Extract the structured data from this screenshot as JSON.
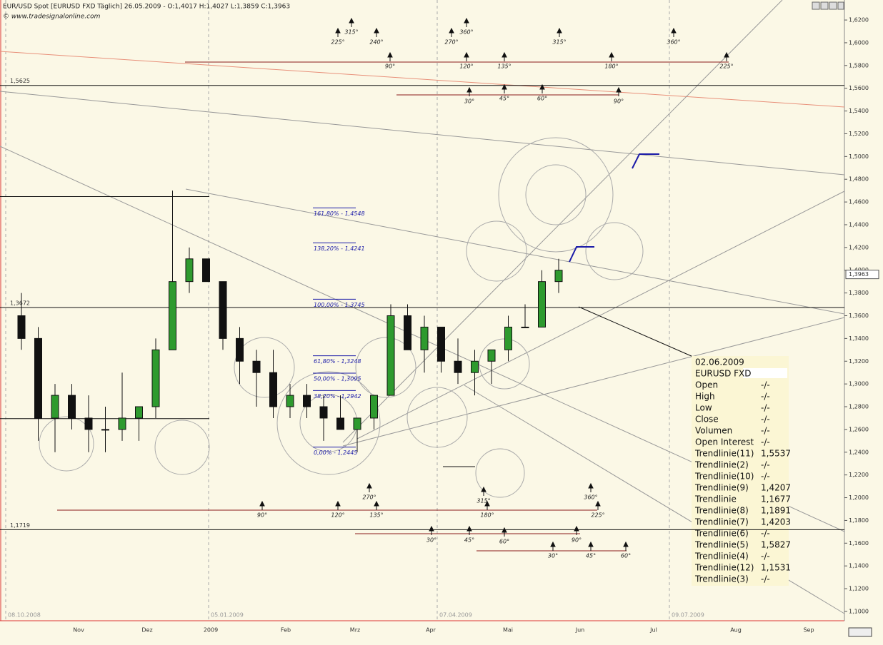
{
  "chart_data": {
    "type": "candlestick",
    "title": "EUR/USD Spot [EURUSD FXD  Täglich] 26.05.2009 - O:1,4017 H:1,4027 L:1,3859 C:1,3963",
    "subtitle": "© www.tradesignalonline.com",
    "categories": [
      null,
      null,
      null,
      null,
      null,
      null,
      null,
      null,
      null,
      null,
      null,
      null,
      null,
      null,
      null,
      null,
      null,
      null,
      null,
      null,
      null,
      null,
      null,
      null,
      null,
      null,
      null,
      null,
      null,
      null,
      null,
      null,
      null
    ],
    "open": [
      1.36,
      1.34,
      1.27,
      1.29,
      1.27,
      1.26,
      1.26,
      1.27,
      1.28,
      1.33,
      1.39,
      1.41,
      1.39,
      1.34,
      1.32,
      1.31,
      1.28,
      1.29,
      1.28,
      1.27,
      1.26,
      1.27,
      1.29,
      1.36,
      1.33,
      1.35,
      1.32,
      1.31,
      1.32,
      1.33,
      1.35,
      1.35,
      1.39
    ],
    "high": [
      1.38,
      1.35,
      1.3,
      1.3,
      1.29,
      1.28,
      1.31,
      1.28,
      1.34,
      1.47,
      1.42,
      1.41,
      1.39,
      1.35,
      1.33,
      1.33,
      1.3,
      1.3,
      1.29,
      1.29,
      1.27,
      1.29,
      1.37,
      1.37,
      1.36,
      1.35,
      1.34,
      1.33,
      1.33,
      1.36,
      1.37,
      1.4,
      1.41
    ],
    "low": [
      1.33,
      1.25,
      1.24,
      1.26,
      1.24,
      1.24,
      1.25,
      1.25,
      1.27,
      1.33,
      1.38,
      1.39,
      1.33,
      1.3,
      1.28,
      1.27,
      1.27,
      1.27,
      1.25,
      1.26,
      1.24,
      1.26,
      1.29,
      1.33,
      1.31,
      1.31,
      1.3,
      1.29,
      1.3,
      1.32,
      1.35,
      1.35,
      1.38
    ],
    "close": [
      1.34,
      1.27,
      1.29,
      1.27,
      1.26,
      1.26,
      1.27,
      1.28,
      1.33,
      1.39,
      1.41,
      1.39,
      1.34,
      1.32,
      1.31,
      1.28,
      1.29,
      1.28,
      1.27,
      1.26,
      1.27,
      1.29,
      1.36,
      1.33,
      1.35,
      1.32,
      1.31,
      1.32,
      1.33,
      1.35,
      1.35,
      1.39,
      1.4
    ],
    "ylim": [
      1.0918,
      1.6376
    ],
    "yticks": [
      {
        "value": 1.1,
        "label": "1,1000"
      },
      {
        "value": 1.12,
        "label": "1,1200"
      },
      {
        "value": 1.14,
        "label": "1,1400"
      },
      {
        "value": 1.16,
        "label": "1,1600"
      },
      {
        "value": 1.18,
        "label": "1,1800"
      },
      {
        "value": 1.2,
        "label": "1,2000"
      },
      {
        "value": 1.22,
        "label": "1,2200"
      },
      {
        "value": 1.24,
        "label": "1,2400"
      },
      {
        "value": 1.26,
        "label": "1,2600"
      },
      {
        "value": 1.28,
        "label": "1,2800"
      },
      {
        "value": 1.3,
        "label": "1,3000"
      },
      {
        "value": 1.32,
        "label": "1,3200"
      },
      {
        "value": 1.34,
        "label": "1,3400"
      },
      {
        "value": 1.36,
        "label": "1,3600"
      },
      {
        "value": 1.38,
        "label": "1,3800"
      },
      {
        "value": 1.4,
        "label": "1,4000"
      },
      {
        "value": 1.42,
        "label": "1,4200"
      },
      {
        "value": 1.44,
        "label": "1,4400"
      },
      {
        "value": 1.46,
        "label": "1,4600"
      },
      {
        "value": 1.48,
        "label": "1,4800"
      },
      {
        "value": 1.5,
        "label": "1,5000"
      },
      {
        "value": 1.52,
        "label": "1,5200"
      },
      {
        "value": 1.54,
        "label": "1,5400"
      },
      {
        "value": 1.56,
        "label": "1,5600"
      },
      {
        "value": 1.58,
        "label": "1,5800"
      },
      {
        "value": 1.6,
        "label": "1,6000"
      },
      {
        "value": 1.62,
        "label": "1,6200"
      }
    ],
    "month_labels": [
      "Nov",
      "Dez",
      "2009",
      "Feb",
      "Mrz",
      "Apr",
      "Mai",
      "Jun",
      "Jul",
      "Aug",
      "Sep"
    ],
    "date_labels": [
      "08.10.2008",
      "05.01.2009",
      "07.04.2009",
      "09.07.2009"
    ],
    "last_price": {
      "value": 1.3963,
      "label": "1,3963"
    },
    "levels": [
      {
        "value": 1.5625,
        "label": "1,5625"
      },
      {
        "value": 1.3672,
        "label": "1,3672"
      },
      {
        "value": 1.1719,
        "label": "1,1719"
      },
      {
        "value": 1.4648,
        "label": null
      },
      {
        "value": 1.2695,
        "label": null
      }
    ],
    "fibonacci": [
      {
        "value": 1.4548,
        "label": "161,80% - 1,4548"
      },
      {
        "value": 1.4241,
        "label": "138,20% - 1,4241"
      },
      {
        "value": 1.3745,
        "label": "100,00% - 1,3745"
      },
      {
        "value": 1.3248,
        "label": "61,80% - 1,3248"
      },
      {
        "value": 1.3095,
        "label": "50,00% - 1,3095"
      },
      {
        "value": 1.2942,
        "label": "38,20% - 1,2942"
      },
      {
        "value": 1.2445,
        "label": "0,00% - 1,2445"
      }
    ],
    "angles": [
      "225°",
      "315°",
      "240°",
      "270°",
      "360°",
      "315°",
      "360°",
      "90°",
      "120°",
      "135°",
      "180°",
      "225°",
      "30°",
      "45°",
      "60°",
      "90°",
      "90°",
      "120°",
      "135°",
      "270°",
      "315°",
      "180°",
      "360°",
      "225°",
      "30°",
      "45°",
      "60°",
      "90°",
      "30°",
      "45°",
      "60°"
    ],
    "info": {
      "date": "02.06.2009",
      "symbol": "EURUSD FXD",
      "rows": [
        [
          "Open",
          "-/-"
        ],
        [
          "High",
          "-/-"
        ],
        [
          "Low",
          "-/-"
        ],
        [
          "Close",
          "-/-"
        ],
        [
          "Volumen",
          "-/-"
        ],
        [
          "Open Interest",
          "-/-"
        ],
        [
          "Trendlinie(11)",
          "1,5537"
        ],
        [
          "Trendlinie(2)",
          "-/-"
        ],
        [
          "Trendlinie(10)",
          "-/-"
        ],
        [
          "Trendlinie(9)",
          "1,4207"
        ],
        [
          "Trendlinie",
          "1,1677"
        ],
        [
          "Trendlinie(8)",
          "1,1891"
        ],
        [
          "Trendlinie(7)",
          "1,4203"
        ],
        [
          "Trendlinie(6)",
          "-/-"
        ],
        [
          "Trendlinie(5)",
          "1,5827"
        ],
        [
          "Trendlinie(4)",
          "-/-"
        ],
        [
          "Trendlinie(12)",
          "1,1531"
        ],
        [
          "Trendlinie(3)",
          "-/-"
        ]
      ]
    }
  }
}
